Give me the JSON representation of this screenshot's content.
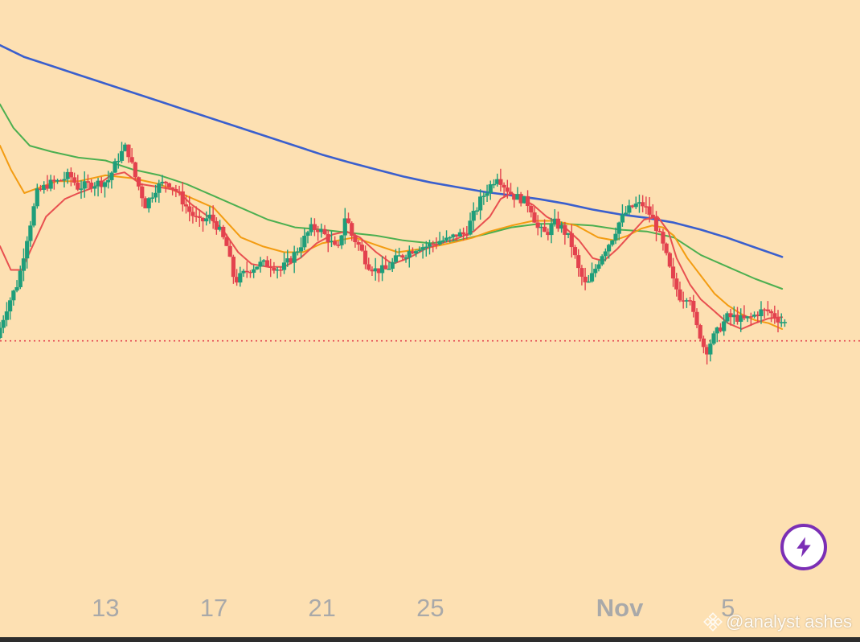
{
  "chart_data": {
    "type": "candlestick",
    "xlabel": "",
    "ylabel": "",
    "x_tick_labels": [
      {
        "day": 13,
        "label": "13",
        "bold": false
      },
      {
        "day": 17,
        "label": "17",
        "bold": false
      },
      {
        "day": 21,
        "label": "21",
        "bold": false
      },
      {
        "day": 25,
        "label": "25",
        "bold": false
      },
      {
        "day": 32,
        "label": "Nov",
        "bold": true
      },
      {
        "day": 36,
        "label": "5",
        "bold": false
      }
    ],
    "x_range_days": [
      9.1,
      38.8
    ],
    "y_range": [
      0,
      100
    ],
    "current_price_level": 38,
    "grid": false,
    "legend": "none",
    "candle_series": {
      "up_color": "#1f9e7a",
      "down_color": "#e3424e",
      "anchors": [
        [
          9.1,
          38.5
        ],
        [
          9.5,
          44
        ],
        [
          9.9,
          48
        ],
        [
          10.2,
          55
        ],
        [
          10.6,
          63
        ],
        [
          11,
          64.5
        ],
        [
          11.4,
          65
        ],
        [
          11.8,
          66
        ],
        [
          12.1,
          64
        ],
        [
          12.6,
          64.5
        ],
        [
          13.2,
          65
        ],
        [
          13.6,
          69
        ],
        [
          13.9,
          71
        ],
        [
          14.2,
          66
        ],
        [
          14.6,
          61
        ],
        [
          15,
          64
        ],
        [
          15.4,
          65
        ],
        [
          15.8,
          63
        ],
        [
          16.2,
          60
        ],
        [
          16.6,
          58
        ],
        [
          17.0,
          59
        ],
        [
          17.3,
          57
        ],
        [
          17.6,
          54
        ],
        [
          17.9,
          48
        ],
        [
          18.4,
          50
        ],
        [
          18.8,
          51
        ],
        [
          19.2,
          51
        ],
        [
          19.6,
          50
        ],
        [
          20.0,
          52
        ],
        [
          20.3,
          54
        ],
        [
          20.7,
          57
        ],
        [
          21.0,
          57
        ],
        [
          21.4,
          55
        ],
        [
          21.7,
          53
        ],
        [
          22.0,
          59.5
        ],
        [
          22.2,
          56
        ],
        [
          22.5,
          54
        ],
        [
          22.8,
          51
        ],
        [
          23.1,
          50
        ],
        [
          23.5,
          50
        ],
        [
          23.9,
          52
        ],
        [
          24.3,
          53
        ],
        [
          24.7,
          54
        ],
        [
          25.0,
          54
        ],
        [
          25.5,
          55
        ],
        [
          25.8,
          55
        ],
        [
          26.1,
          56
        ],
        [
          26.4,
          56
        ],
        [
          26.7,
          59
        ],
        [
          27.0,
          62
        ],
        [
          27.3,
          64
        ],
        [
          27.6,
          66
        ],
        [
          27.9,
          64
        ],
        [
          28.2,
          62.5
        ],
        [
          28.5,
          62
        ],
        [
          28.8,
          61
        ],
        [
          29.1,
          57
        ],
        [
          29.4,
          56
        ],
        [
          29.7,
          58
        ],
        [
          30.0,
          57
        ],
        [
          30.3,
          55
        ],
        [
          30.6,
          50
        ],
        [
          30.9,
          47
        ],
        [
          31.2,
          50
        ],
        [
          31.5,
          53
        ],
        [
          31.8,
          55
        ],
        [
          32.1,
          58
        ],
        [
          32.4,
          60
        ],
        [
          32.7,
          61
        ],
        [
          33.0,
          61
        ],
        [
          33.3,
          59
        ],
        [
          33.5,
          57
        ],
        [
          33.8,
          53
        ],
        [
          34.1,
          48
        ],
        [
          34.4,
          45
        ],
        [
          34.7,
          46
        ],
        [
          34.9,
          41
        ],
        [
          35.1,
          39
        ],
        [
          35.3,
          36
        ],
        [
          35.5,
          38
        ],
        [
          35.8,
          40
        ],
        [
          36.1,
          42
        ],
        [
          36.4,
          42
        ],
        [
          36.7,
          41.5
        ],
        [
          37.0,
          42
        ],
        [
          37.3,
          43
        ],
        [
          37.6,
          43
        ],
        [
          37.9,
          42
        ],
        [
          38.2,
          41
        ]
      ]
    },
    "series": [
      {
        "color": "#3a5fcd",
        "values": [
          [
            9.1,
            88
          ],
          [
            10.0,
            86
          ],
          [
            11.0,
            84.5
          ],
          [
            12.0,
            83
          ],
          [
            13.0,
            81.5
          ],
          [
            14.0,
            80
          ],
          [
            15.0,
            78.5
          ],
          [
            16.0,
            77
          ],
          [
            17.0,
            75.5
          ],
          [
            18.0,
            74
          ],
          [
            19.0,
            72.5
          ],
          [
            20.0,
            71
          ],
          [
            21.0,
            69.5
          ],
          [
            22.0,
            68.2
          ],
          [
            23.0,
            67
          ],
          [
            24.0,
            65.8
          ],
          [
            25.0,
            64.8
          ],
          [
            26.0,
            64
          ],
          [
            27.0,
            63.2
          ],
          [
            28.0,
            62.6
          ],
          [
            29.0,
            62
          ],
          [
            30.0,
            61.2
          ],
          [
            31.0,
            60.2
          ],
          [
            32.0,
            59.4
          ],
          [
            33.0,
            58.8
          ],
          [
            34.0,
            58
          ],
          [
            35.0,
            56.8
          ],
          [
            36.0,
            55.4
          ],
          [
            37.0,
            53.8
          ],
          [
            38.0,
            52.2
          ]
        ]
      },
      {
        "color": "#4caf50",
        "values": [
          [
            9.1,
            78
          ],
          [
            9.6,
            74
          ],
          [
            10.2,
            71
          ],
          [
            11.0,
            70
          ],
          [
            12.0,
            69
          ],
          [
            13.0,
            68.5
          ],
          [
            14.0,
            67
          ],
          [
            15.0,
            66
          ],
          [
            16.0,
            64.5
          ],
          [
            17.0,
            62.5
          ],
          [
            18.0,
            60.5
          ],
          [
            19.0,
            58.5
          ],
          [
            20.0,
            57.2
          ],
          [
            21.0,
            56.8
          ],
          [
            22.0,
            56.3
          ],
          [
            23.0,
            55.8
          ],
          [
            24.0,
            55
          ],
          [
            25.0,
            54.5
          ],
          [
            26.0,
            55
          ],
          [
            27.0,
            56
          ],
          [
            28.0,
            57.2
          ],
          [
            29.0,
            57.8
          ],
          [
            30.0,
            57.8
          ],
          [
            31.0,
            57.5
          ],
          [
            32.0,
            56.8
          ],
          [
            33.0,
            56.5
          ],
          [
            34.0,
            55.5
          ],
          [
            35.0,
            52.5
          ],
          [
            36.0,
            50.5
          ],
          [
            37.0,
            48.5
          ],
          [
            38.0,
            46.8
          ]
        ]
      },
      {
        "color": "#f39c12",
        "values": [
          [
            9.1,
            71
          ],
          [
            9.5,
            67
          ],
          [
            10.0,
            63
          ],
          [
            10.6,
            64
          ],
          [
            11.2,
            65
          ],
          [
            12.0,
            65
          ],
          [
            13.0,
            66
          ],
          [
            14.0,
            65.5
          ],
          [
            15.0,
            64.5
          ],
          [
            16.0,
            62.5
          ],
          [
            17.0,
            60.5
          ],
          [
            17.5,
            58
          ],
          [
            18.0,
            55.5
          ],
          [
            18.8,
            54
          ],
          [
            19.6,
            53
          ],
          [
            20.3,
            53
          ],
          [
            21.0,
            54.5
          ],
          [
            21.6,
            55
          ],
          [
            22.2,
            55.5
          ],
          [
            23.0,
            54.2
          ],
          [
            23.8,
            53
          ],
          [
            24.6,
            53.5
          ],
          [
            25.4,
            54.2
          ],
          [
            26.0,
            54.8
          ],
          [
            26.6,
            55.5
          ],
          [
            27.2,
            56.5
          ],
          [
            28.0,
            57.5
          ],
          [
            28.8,
            58.3
          ],
          [
            29.6,
            58.3
          ],
          [
            30.4,
            57.5
          ],
          [
            31.2,
            55.5
          ],
          [
            31.8,
            55
          ],
          [
            32.3,
            55.8
          ],
          [
            32.8,
            57
          ],
          [
            33.2,
            57.5
          ],
          [
            33.6,
            57.2
          ],
          [
            34.0,
            55.8
          ],
          [
            34.5,
            52
          ],
          [
            35.0,
            49
          ],
          [
            35.5,
            46
          ],
          [
            36.0,
            44
          ],
          [
            36.5,
            42.5
          ],
          [
            37.0,
            41.5
          ],
          [
            37.5,
            41
          ],
          [
            38.0,
            40
          ]
        ]
      },
      {
        "color": "#e85050",
        "values": [
          [
            9.1,
            54
          ],
          [
            9.5,
            50
          ],
          [
            9.9,
            50
          ],
          [
            10.3,
            54
          ],
          [
            10.8,
            59
          ],
          [
            11.5,
            62
          ],
          [
            12.0,
            63
          ],
          [
            12.6,
            64
          ],
          [
            13.2,
            66
          ],
          [
            13.7,
            66.5
          ],
          [
            14.3,
            64.5
          ],
          [
            15.0,
            64
          ],
          [
            15.6,
            63.5
          ],
          [
            16.2,
            61
          ],
          [
            16.8,
            59
          ],
          [
            17.3,
            57
          ],
          [
            17.9,
            53
          ],
          [
            18.4,
            51
          ],
          [
            19.0,
            50.5
          ],
          [
            19.6,
            50.5
          ],
          [
            20.2,
            52
          ],
          [
            20.8,
            54.5
          ],
          [
            21.4,
            56
          ],
          [
            21.9,
            56.5
          ],
          [
            22.4,
            55.5
          ],
          [
            23.0,
            53
          ],
          [
            23.6,
            51
          ],
          [
            24.2,
            52
          ],
          [
            24.8,
            53.5
          ],
          [
            25.4,
            54.5
          ],
          [
            26.0,
            55.3
          ],
          [
            26.6,
            56.5
          ],
          [
            27.2,
            59
          ],
          [
            27.6,
            62
          ],
          [
            28.0,
            63
          ],
          [
            28.4,
            62
          ],
          [
            28.8,
            61
          ],
          [
            29.3,
            59
          ],
          [
            29.9,
            57.5
          ],
          [
            30.5,
            55
          ],
          [
            31.0,
            52
          ],
          [
            31.4,
            51.5
          ],
          [
            31.9,
            53.5
          ],
          [
            32.4,
            56
          ],
          [
            32.9,
            58.5
          ],
          [
            33.4,
            59
          ],
          [
            33.8,
            56.5
          ],
          [
            34.1,
            52
          ],
          [
            34.6,
            47.5
          ],
          [
            35.0,
            45
          ],
          [
            35.5,
            43
          ],
          [
            36.0,
            41
          ],
          [
            36.5,
            40
          ],
          [
            37.0,
            41
          ],
          [
            37.5,
            41.8
          ],
          [
            38.0,
            42
          ]
        ]
      }
    ]
  },
  "price_line_color": "#e3424e",
  "flash_button_icon": "lightning-bolt-icon",
  "flash_button_color": "#7b2fb5",
  "watermark": {
    "text": "@analyst ashes",
    "icon": "binance-logo-icon"
  }
}
